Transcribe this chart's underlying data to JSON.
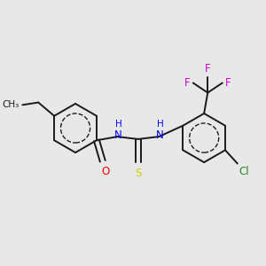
{
  "background_color": "#e8e8e8",
  "fig_size": [
    3.0,
    3.0
  ],
  "dpi": 100,
  "bond_color": "#1a1a1a",
  "bond_lw": 1.4,
  "colors": {
    "N": "#0000ff",
    "O": "#ff0000",
    "S": "#cccc00",
    "F": "#cc00cc",
    "Cl": "#228B22",
    "C": "#1a1a1a"
  },
  "fs": 8.5,
  "fs_sub": 7.5,
  "xlim": [
    0.0,
    10.0
  ],
  "ylim": [
    0.0,
    10.0
  ]
}
